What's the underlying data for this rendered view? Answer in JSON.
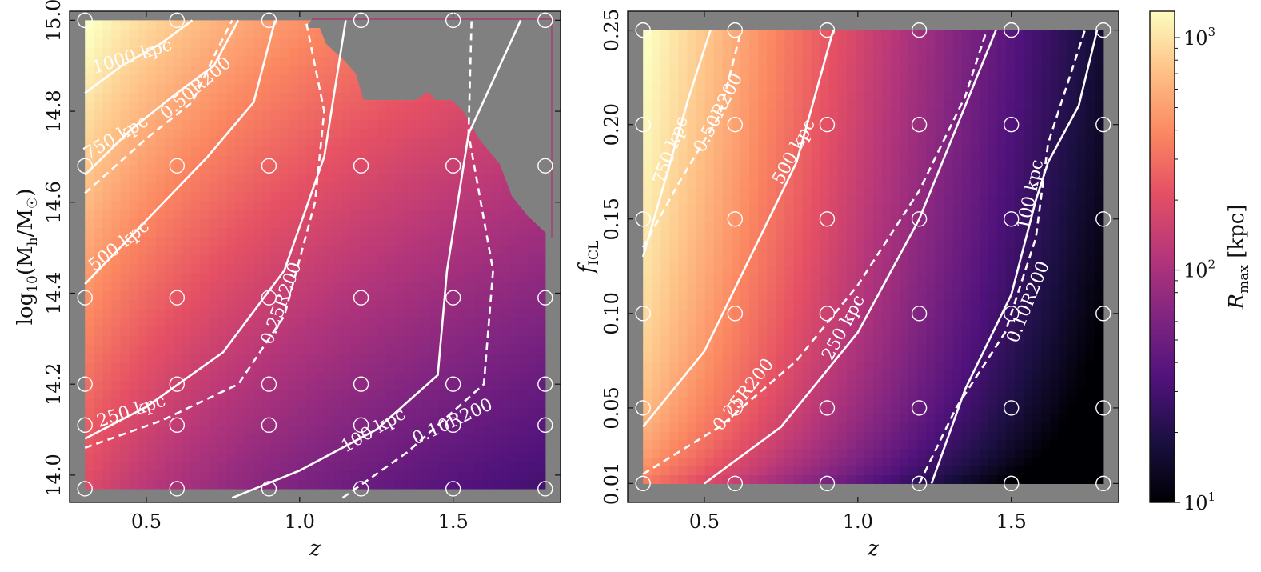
{
  "chart_data": [
    {
      "type": "heatmap",
      "panel": "left",
      "xlabel": "z",
      "ylabel": "log10(M_h/M_sun)",
      "xlim": [
        0.25,
        1.85
      ],
      "ylim": [
        13.94,
        15.02
      ],
      "xticks": [
        0.5,
        1.0,
        1.5
      ],
      "xtick_labels": [
        "0.5",
        "1.0",
        "1.5"
      ],
      "yticks": [
        14.0,
        14.2,
        14.4,
        14.6,
        14.8,
        15.0
      ],
      "ytick_labels": [
        "14.0",
        "14.2",
        "14.4",
        "14.6",
        "14.8",
        "15.0"
      ],
      "grid_x": [
        0.3,
        0.6,
        0.9,
        1.2,
        1.5,
        1.8
      ],
      "grid_y": [
        13.97,
        14.11,
        14.2,
        14.39,
        14.68,
        15.0
      ],
      "masked_region_note": "no data (gray)",
      "contours": [
        {
          "label": "1000 kpc",
          "style": "solid",
          "points": [
            [
              0.3,
              14.84
            ],
            [
              0.42,
              14.9
            ],
            [
              0.55,
              14.95
            ],
            [
              0.65,
              15.0
            ]
          ]
        },
        {
          "label": "750 kpc",
          "style": "solid",
          "points": [
            [
              0.3,
              14.66
            ],
            [
              0.45,
              14.76
            ],
            [
              0.6,
              14.84
            ],
            [
              0.72,
              14.9
            ],
            [
              0.8,
              15.0
            ]
          ]
        },
        {
          "label": "500 kpc",
          "style": "solid",
          "points": [
            [
              0.3,
              14.42
            ],
            [
              0.5,
              14.56
            ],
            [
              0.7,
              14.7
            ],
            [
              0.85,
              14.82
            ],
            [
              0.92,
              15.0
            ]
          ]
        },
        {
          "label": "250 kpc",
          "style": "solid",
          "points": [
            [
              0.3,
              14.08
            ],
            [
              0.5,
              14.15
            ],
            [
              0.75,
              14.27
            ],
            [
              0.95,
              14.45
            ],
            [
              1.08,
              14.7
            ],
            [
              1.15,
              15.0
            ]
          ]
        },
        {
          "label": "100 kpc",
          "style": "solid",
          "points": [
            [
              0.78,
              13.95
            ],
            [
              1.0,
              14.01
            ],
            [
              1.25,
              14.1
            ],
            [
              1.45,
              14.22
            ],
            [
              1.48,
              14.45
            ],
            [
              1.55,
              14.75
            ],
            [
              1.72,
              15.0
            ]
          ]
        },
        {
          "label": "0.50R200",
          "style": "dashed",
          "points": [
            [
              0.3,
              14.62
            ],
            [
              0.5,
              14.74
            ],
            [
              0.65,
              14.82
            ],
            [
              0.72,
              14.92
            ],
            [
              0.78,
              15.0
            ]
          ]
        },
        {
          "label": "0.25R200",
          "style": "dashed",
          "points": [
            [
              0.3,
              14.06
            ],
            [
              0.55,
              14.12
            ],
            [
              0.8,
              14.2
            ],
            [
              0.95,
              14.35
            ],
            [
              1.05,
              14.6
            ],
            [
              1.08,
              14.8
            ],
            [
              1.02,
              15.0
            ]
          ]
        },
        {
          "label": "0.10R200",
          "style": "dashed",
          "points": [
            [
              1.14,
              13.95
            ],
            [
              1.35,
              14.05
            ],
            [
              1.6,
              14.2
            ],
            [
              1.63,
              14.45
            ],
            [
              1.55,
              14.75
            ],
            [
              1.56,
              15.0
            ]
          ]
        }
      ],
      "contour_labels": [
        "1000 kpc",
        "750 kpc",
        "500 kpc",
        "250 kpc",
        "100 kpc",
        "0.50R200",
        "0.25R200",
        "0.10R200"
      ]
    },
    {
      "type": "heatmap",
      "panel": "right",
      "xlabel": "z",
      "ylabel": "f_ICL",
      "xlim": [
        0.25,
        1.85
      ],
      "ylim": [
        0.0,
        0.26
      ],
      "xticks": [
        0.5,
        1.0,
        1.5
      ],
      "xtick_labels": [
        "0.5",
        "1.0",
        "1.5"
      ],
      "yticks": [
        0.01,
        0.05,
        0.1,
        0.15,
        0.2,
        0.25
      ],
      "ytick_labels": [
        "0.01",
        "0.05",
        "0.10",
        "0.15",
        "0.20",
        "0.25"
      ],
      "grid_x": [
        0.3,
        0.6,
        0.9,
        1.2,
        1.5,
        1.8
      ],
      "grid_y": [
        0.01,
        0.05,
        0.1,
        0.15,
        0.2,
        0.25
      ],
      "contours": [
        {
          "label": "750 kpc",
          "style": "solid",
          "points": [
            [
              0.3,
              0.13
            ],
            [
              0.38,
              0.175
            ],
            [
              0.45,
              0.215
            ],
            [
              0.52,
              0.25
            ]
          ]
        },
        {
          "label": "500 kpc",
          "style": "solid",
          "points": [
            [
              0.3,
              0.04
            ],
            [
              0.5,
              0.08
            ],
            [
              0.65,
              0.13
            ],
            [
              0.8,
              0.18
            ],
            [
              0.92,
              0.25
            ]
          ]
        },
        {
          "label": "250 kpc",
          "style": "solid",
          "points": [
            [
              0.5,
              0.01
            ],
            [
              0.75,
              0.04
            ],
            [
              1.0,
              0.09
            ],
            [
              1.2,
              0.15
            ],
            [
              1.35,
              0.21
            ],
            [
              1.45,
              0.25
            ]
          ]
        },
        {
          "label": "100 kpc",
          "style": "solid",
          "points": [
            [
              1.24,
              0.01
            ],
            [
              1.35,
              0.06
            ],
            [
              1.5,
              0.11
            ],
            [
              1.58,
              0.16
            ],
            [
              1.62,
              0.18
            ],
            [
              1.72,
              0.21
            ],
            [
              1.78,
              0.25
            ]
          ]
        },
        {
          "label": "0.50R200",
          "style": "dashed",
          "points": [
            [
              0.3,
              0.135
            ],
            [
              0.42,
              0.17
            ],
            [
              0.55,
              0.205
            ],
            [
              0.62,
              0.25
            ]
          ]
        },
        {
          "label": "0.25R200",
          "style": "dashed",
          "points": [
            [
              0.3,
              0.015
            ],
            [
              0.55,
              0.04
            ],
            [
              0.8,
              0.075
            ],
            [
              1.0,
              0.115
            ],
            [
              1.2,
              0.165
            ],
            [
              1.35,
              0.215
            ],
            [
              1.42,
              0.25
            ]
          ]
        },
        {
          "label": "0.10R200",
          "style": "dashed",
          "points": [
            [
              1.2,
              0.01
            ],
            [
              1.32,
              0.05
            ],
            [
              1.48,
              0.09
            ],
            [
              1.58,
              0.14
            ],
            [
              1.62,
              0.19
            ],
            [
              1.74,
              0.25
            ]
          ]
        }
      ],
      "contour_labels": [
        "750 kpc",
        "500 kpc",
        "250 kpc",
        "100 kpc",
        "0.50R200",
        "0.25R200",
        "0.10R200"
      ]
    }
  ],
  "colorbar": {
    "label": "R_max [kpc]",
    "scale": "log",
    "range": [
      10,
      1300
    ],
    "ticks": [
      10,
      100,
      1000
    ],
    "tick_labels": [
      "10",
      "10",
      "10"
    ],
    "tick_exponents": [
      "1",
      "2",
      "3"
    ],
    "colormap": "magma"
  },
  "colors": {
    "masked": "#808080",
    "contour": "#ffffff",
    "frame": "#111111"
  },
  "labels": {
    "left_xlabel": "z",
    "left_ylabel_main": "log",
    "left_ylabel_sub": "10",
    "left_ylabel_rest": "(M",
    "left_ylabel_h": "h",
    "left_ylabel_slash": "/M",
    "left_ylabel_sun": "☉",
    "left_ylabel_close": ")",
    "right_xlabel": "z",
    "right_ylabel_main": "f",
    "right_ylabel_sub": "ICL",
    "cbar_label_main": "R",
    "cbar_label_sub": "max",
    "cbar_label_unit": " [kpc]"
  }
}
